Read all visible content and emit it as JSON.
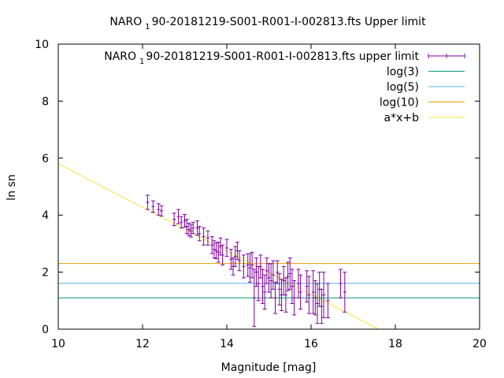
{
  "chart_data": {
    "type": "scatter",
    "title_main": "NARO",
    "title_sub": "1",
    "title_rest": "90-20181219-S001-R001-I-002813.fts Upper limit",
    "xlabel": "Magnitude [mag]",
    "ylabel": "ln sn",
    "xlim": [
      10,
      20
    ],
    "ylim": [
      0,
      10
    ],
    "xticks": [
      "10",
      "12",
      "14",
      "16",
      "18",
      "20"
    ],
    "yticks": [
      "0",
      "2",
      "4",
      "6",
      "8",
      "10"
    ],
    "legend": [
      {
        "name_main": "NARO",
        "name_sub": "1",
        "name_rest": "90-20181219-S001-R001-I-002813.fts upper limit",
        "color": "#8000a0",
        "kind": "errorbar"
      },
      {
        "name": "log(3)",
        "color": "#009e73",
        "kind": "line"
      },
      {
        "name": "log(5)",
        "color": "#56b4e9",
        "kind": "line"
      },
      {
        "name": "log(10)",
        "color": "#e69f00",
        "kind": "line"
      },
      {
        "name": "a*x+b",
        "color": "#f0e442",
        "kind": "line"
      }
    ],
    "hlines": [
      {
        "name": "log(3)",
        "y": 1.0986,
        "color": "#009e73"
      },
      {
        "name": "log(5)",
        "y": 1.6094,
        "color": "#56b4e9"
      },
      {
        "name": "log(10)",
        "y": 2.3026,
        "color": "#e69f00"
      }
    ],
    "fit_line": {
      "name": "a*x+b",
      "x": [
        10,
        17.6
      ],
      "y": [
        5.8,
        0
      ],
      "color": "#f0e442"
    },
    "series": [
      {
        "color": "#8000a0",
        "points": [
          [
            12.12,
            4.45,
            0.25
          ],
          [
            12.25,
            4.3,
            0.2
          ],
          [
            12.38,
            4.2,
            0.2
          ],
          [
            12.45,
            4.15,
            0.18
          ],
          [
            12.75,
            3.85,
            0.22
          ],
          [
            12.85,
            3.95,
            0.25
          ],
          [
            12.92,
            3.75,
            0.2
          ],
          [
            13.0,
            3.8,
            0.22
          ],
          [
            13.05,
            3.6,
            0.25
          ],
          [
            13.1,
            3.5,
            0.22
          ],
          [
            13.15,
            3.45,
            0.22
          ],
          [
            13.2,
            3.55,
            0.2
          ],
          [
            13.3,
            3.55,
            0.25
          ],
          [
            13.35,
            3.35,
            0.25
          ],
          [
            13.45,
            3.25,
            0.3
          ],
          [
            13.55,
            3.2,
            0.25
          ],
          [
            13.65,
            2.95,
            0.3
          ],
          [
            13.7,
            2.8,
            0.3
          ],
          [
            13.75,
            2.75,
            0.28
          ],
          [
            13.8,
            2.7,
            0.35
          ],
          [
            13.85,
            2.9,
            0.3
          ],
          [
            13.9,
            2.6,
            0.35
          ],
          [
            14.0,
            2.85,
            0.3
          ],
          [
            14.1,
            2.45,
            0.35
          ],
          [
            14.15,
            2.2,
            0.3
          ],
          [
            14.2,
            2.55,
            0.35
          ],
          [
            14.25,
            2.75,
            0.3
          ],
          [
            14.3,
            2.4,
            0.35
          ],
          [
            14.4,
            2.2,
            0.4
          ],
          [
            14.5,
            2.25,
            0.4
          ],
          [
            14.55,
            2.15,
            0.5
          ],
          [
            14.6,
            2.25,
            0.45
          ],
          [
            14.65,
            1.1,
            1.0
          ],
          [
            14.7,
            2.0,
            0.5
          ],
          [
            14.75,
            1.6,
            0.6
          ],
          [
            14.8,
            2.2,
            0.4
          ],
          [
            14.85,
            1.5,
            0.6
          ],
          [
            14.9,
            1.3,
            0.6
          ],
          [
            14.95,
            2.05,
            0.45
          ],
          [
            15.0,
            1.8,
            0.5
          ],
          [
            15.05,
            1.7,
            0.6
          ],
          [
            15.1,
            1.9,
            0.5
          ],
          [
            15.15,
            1.1,
            0.55
          ],
          [
            15.2,
            2.0,
            0.4
          ],
          [
            15.25,
            1.4,
            0.55
          ],
          [
            15.3,
            1.2,
            0.55
          ],
          [
            15.35,
            1.7,
            0.5
          ],
          [
            15.4,
            1.2,
            0.6
          ],
          [
            15.45,
            1.85,
            0.5
          ],
          [
            15.5,
            1.95,
            0.55
          ],
          [
            15.55,
            1.5,
            0.6
          ],
          [
            15.6,
            1.1,
            0.6
          ],
          [
            15.7,
            1.6,
            0.5
          ],
          [
            15.75,
            1.3,
            0.6
          ],
          [
            15.9,
            1.5,
            0.55
          ],
          [
            15.95,
            1.2,
            0.65
          ],
          [
            16.05,
            1.3,
            0.75
          ],
          [
            16.1,
            1.1,
            0.6
          ],
          [
            16.15,
            0.9,
            0.7
          ],
          [
            16.2,
            1.4,
            0.6
          ],
          [
            16.25,
            0.8,
            0.6
          ],
          [
            16.3,
            1.2,
            0.8
          ],
          [
            16.4,
            1.0,
            0.6
          ],
          [
            16.7,
            1.6,
            0.5
          ],
          [
            16.8,
            1.3,
            0.7
          ]
        ]
      }
    ]
  }
}
